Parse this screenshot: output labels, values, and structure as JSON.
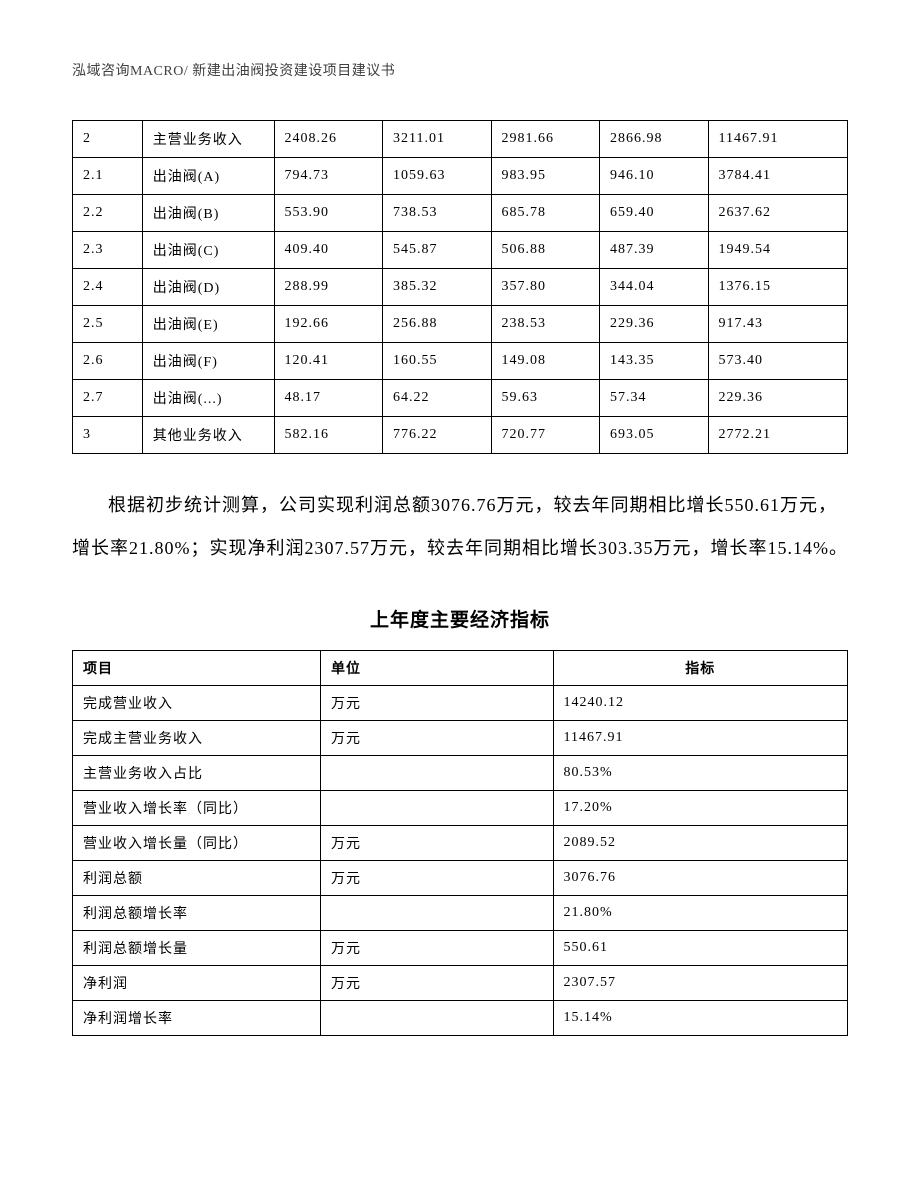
{
  "header": "泓域咨询MACRO/   新建出油阀投资建设项目建议书",
  "table1": {
    "col_widths": [
      "9%",
      "17%",
      "14%",
      "14%",
      "14%",
      "14%",
      "18%"
    ],
    "rows": [
      [
        "2",
        "主营业务收入",
        "2408.26",
        "3211.01",
        "2981.66",
        "2866.98",
        "11467.91"
      ],
      [
        "2.1",
        "出油阀(A)",
        "794.73",
        "1059.63",
        "983.95",
        "946.10",
        "3784.41"
      ],
      [
        "2.2",
        "出油阀(B)",
        "553.90",
        "738.53",
        "685.78",
        "659.40",
        "2637.62"
      ],
      [
        "2.3",
        "出油阀(C)",
        "409.40",
        "545.87",
        "506.88",
        "487.39",
        "1949.54"
      ],
      [
        "2.4",
        "出油阀(D)",
        "288.99",
        "385.32",
        "357.80",
        "344.04",
        "1376.15"
      ],
      [
        "2.5",
        "出油阀(E)",
        "192.66",
        "256.88",
        "238.53",
        "229.36",
        "917.43"
      ],
      [
        "2.6",
        "出油阀(F)",
        "120.41",
        "160.55",
        "149.08",
        "143.35",
        "573.40"
      ],
      [
        "2.7",
        "出油阀(...)",
        "48.17",
        "64.22",
        "59.63",
        "57.34",
        "229.36"
      ],
      [
        "3",
        "其他业务收入",
        "582.16",
        "776.22",
        "720.77",
        "693.05",
        "2772.21"
      ]
    ]
  },
  "paragraph": "根据初步统计测算，公司实现利润总额3076.76万元，较去年同期相比增长550.61万元，增长率21.80%；实现净利润2307.57万元，较去年同期相比增长303.35万元，增长率15.14%。",
  "section_title": "上年度主要经济指标",
  "table2": {
    "headers": [
      "项目",
      "单位",
      "指标"
    ],
    "col_widths": [
      "32%",
      "30%",
      "38%"
    ],
    "rows": [
      [
        "完成营业收入",
        "万元",
        "14240.12"
      ],
      [
        "完成主营业务收入",
        "万元",
        "11467.91"
      ],
      [
        "主营业务收入占比",
        "",
        "80.53%"
      ],
      [
        "营业收入增长率（同比）",
        "",
        "17.20%"
      ],
      [
        "营业收入增长量（同比）",
        "万元",
        "2089.52"
      ],
      [
        "利润总额",
        "万元",
        "3076.76"
      ],
      [
        "利润总额增长率",
        "",
        "21.80%"
      ],
      [
        "利润总额增长量",
        "万元",
        "550.61"
      ],
      [
        "净利润",
        "万元",
        "2307.57"
      ],
      [
        "净利润增长率",
        "",
        "15.14%"
      ]
    ]
  }
}
